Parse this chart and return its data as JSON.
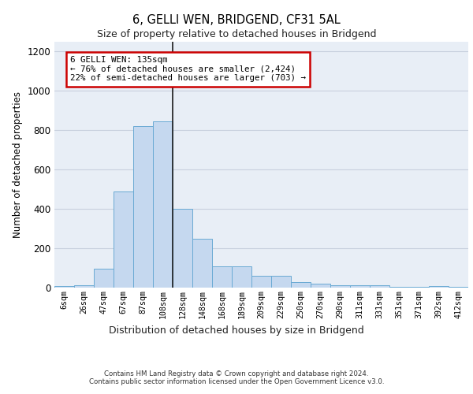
{
  "title1": "6, GELLI WEN, BRIDGEND, CF31 5AL",
  "title2": "Size of property relative to detached houses in Bridgend",
  "xlabel": "Distribution of detached houses by size in Bridgend",
  "ylabel": "Number of detached properties",
  "categories": [
    "6sqm",
    "26sqm",
    "47sqm",
    "67sqm",
    "87sqm",
    "108sqm",
    "128sqm",
    "148sqm",
    "168sqm",
    "189sqm",
    "209sqm",
    "229sqm",
    "250sqm",
    "270sqm",
    "290sqm",
    "311sqm",
    "331sqm",
    "351sqm",
    "371sqm",
    "392sqm",
    "412sqm"
  ],
  "values": [
    8,
    14,
    95,
    490,
    820,
    845,
    400,
    250,
    110,
    110,
    62,
    62,
    28,
    20,
    12,
    12,
    12,
    3,
    3,
    8,
    3
  ],
  "bar_color": "#c5d8ef",
  "bar_edge_color": "#6aaad4",
  "highlight_index": 5,
  "vline_index": 5,
  "annotation_text": "6 GELLI WEN: 135sqm\n← 76% of detached houses are smaller (2,424)\n22% of semi-detached houses are larger (703) →",
  "annotation_box_color": "#ffffff",
  "annotation_box_edge_color": "#cc0000",
  "ylim": [
    0,
    1250
  ],
  "yticks": [
    0,
    200,
    400,
    600,
    800,
    1000,
    1200
  ],
  "footnote": "Contains HM Land Registry data © Crown copyright and database right 2024.\nContains public sector information licensed under the Open Government Licence v3.0.",
  "grid_color": "#c8d0de",
  "bg_color": "#e8eef6"
}
